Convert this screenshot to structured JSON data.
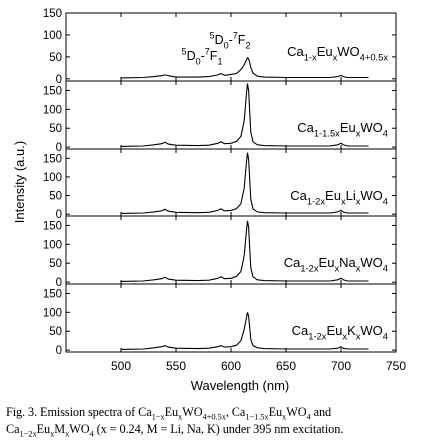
{
  "chart_data": {
    "type": "line",
    "xlabel": "Wavelength (nm)",
    "ylabel": "Intensity (a.u.)",
    "xlim": [
      500,
      725
    ],
    "xlim_axis": [
      450,
      750
    ],
    "x_ticks": [
      "500",
      "550",
      "600",
      "650",
      "700",
      "750"
    ],
    "grid": false,
    "peak_labels": {
      "d0f1": {
        "sup1": "5",
        "base1": "D",
        "sub1": "0",
        "dash": "-",
        "sup2": "7",
        "base2": "F",
        "sub2": "1"
      },
      "d0f2": {
        "sup1": "5",
        "base1": "D",
        "sub1": "0",
        "dash": "-",
        "sup2": "7",
        "base2": "F",
        "sub2": "2"
      }
    },
    "panels": [
      {
        "ylim": [
          -5,
          150
        ],
        "y_ticks": [
          "150",
          "100",
          "50",
          "0"
        ],
        "label": [
          {
            "t": "Ca",
            "s": ""
          },
          {
            "t": "1-x",
            "s": "sub"
          },
          {
            "t": "Eu",
            "s": ""
          },
          {
            "t": "x",
            "s": "sub"
          },
          {
            "t": "WO",
            "s": ""
          },
          {
            "t": "4+0.5x",
            "s": "sub"
          }
        ],
        "series": {
          "x": [
            500,
            520,
            530,
            537,
            540,
            543,
            550,
            570,
            580,
            588,
            591,
            594,
            600,
            605,
            609,
            612,
            614,
            615,
            616,
            617,
            618,
            620,
            624,
            630,
            650,
            690,
            697,
            700,
            702,
            706,
            725
          ],
          "y": [
            2,
            3,
            5,
            7,
            9,
            7,
            4,
            4,
            5,
            9,
            12,
            8,
            10,
            12,
            21,
            32,
            43,
            48,
            46,
            37,
            26,
            13,
            6,
            4,
            3,
            3,
            5,
            8,
            5,
            3,
            3
          ]
        }
      },
      {
        "ylim": [
          -5,
          175
        ],
        "y_ticks": [
          "150",
          "100",
          "50",
          "0"
        ],
        "label": [
          {
            "t": "Ca",
            "s": ""
          },
          {
            "t": "1-1.5x",
            "s": "sub"
          },
          {
            "t": "Eu",
            "s": ""
          },
          {
            "t": "x",
            "s": "sub"
          },
          {
            "t": "WO",
            "s": ""
          },
          {
            "t": "4",
            "s": "sub"
          }
        ],
        "series": {
          "x": [
            500,
            520,
            530,
            537,
            540,
            543,
            550,
            570,
            580,
            588,
            591,
            594,
            600,
            605,
            609,
            612,
            614,
            615,
            616,
            617,
            618,
            620,
            624,
            630,
            650,
            690,
            697,
            700,
            702,
            706,
            725
          ],
          "y": [
            2,
            3,
            6,
            9,
            13,
            8,
            5,
            4,
            5,
            10,
            14,
            9,
            10,
            15,
            28,
            70,
            140,
            168,
            150,
            95,
            40,
            14,
            6,
            4,
            3,
            3,
            6,
            10,
            6,
            3,
            3
          ]
        }
      },
      {
        "ylim": [
          -5,
          175
        ],
        "y_ticks": [
          "150",
          "100",
          "50",
          "0"
        ],
        "label": [
          {
            "t": "Ca",
            "s": ""
          },
          {
            "t": "1-2x",
            "s": "sub"
          },
          {
            "t": "Eu",
            "s": ""
          },
          {
            "t": "x",
            "s": "sub"
          },
          {
            "t": "Li",
            "s": ""
          },
          {
            "t": "x",
            "s": "sub"
          },
          {
            "t": "WO",
            "s": ""
          },
          {
            "t": "4",
            "s": "sub"
          }
        ],
        "series": {
          "x": [
            500,
            520,
            530,
            537,
            540,
            543,
            550,
            570,
            580,
            588,
            591,
            594,
            600,
            605,
            609,
            612,
            614,
            615,
            616,
            617,
            618,
            620,
            624,
            630,
            650,
            690,
            697,
            700,
            702,
            706,
            725
          ],
          "y": [
            2,
            3,
            6,
            9,
            13,
            8,
            5,
            4,
            5,
            10,
            14,
            9,
            10,
            15,
            28,
            70,
            138,
            165,
            148,
            95,
            40,
            14,
            6,
            4,
            3,
            3,
            6,
            10,
            6,
            3,
            3
          ]
        }
      },
      {
        "ylim": [
          -5,
          175
        ],
        "y_ticks": [
          "150",
          "100",
          "50",
          "0"
        ],
        "label": [
          {
            "t": "Ca",
            "s": ""
          },
          {
            "t": "1-2x",
            "s": "sub"
          },
          {
            "t": "Eu",
            "s": ""
          },
          {
            "t": "x",
            "s": "sub"
          },
          {
            "t": "Na",
            "s": ""
          },
          {
            "t": "x",
            "s": "sub"
          },
          {
            "t": "WO",
            "s": ""
          },
          {
            "t": "4",
            "s": "sub"
          }
        ],
        "series": {
          "x": [
            500,
            520,
            530,
            537,
            540,
            543,
            550,
            570,
            580,
            588,
            591,
            594,
            600,
            605,
            609,
            612,
            614,
            615,
            616,
            617,
            618,
            620,
            624,
            630,
            650,
            690,
            697,
            700,
            702,
            706,
            725
          ],
          "y": [
            2,
            3,
            6,
            9,
            13,
            8,
            5,
            4,
            5,
            10,
            14,
            9,
            10,
            15,
            28,
            70,
            135,
            162,
            145,
            92,
            38,
            14,
            6,
            4,
            3,
            3,
            6,
            10,
            6,
            3,
            3
          ]
        }
      },
      {
        "ylim": [
          -5,
          175
        ],
        "y_ticks": [
          "150",
          "100",
          "50",
          "0"
        ],
        "label": [
          {
            "t": "Ca",
            "s": ""
          },
          {
            "t": "1-2x",
            "s": "sub"
          },
          {
            "t": "Eu",
            "s": ""
          },
          {
            "t": "x",
            "s": "sub"
          },
          {
            "t": "K",
            "s": ""
          },
          {
            "t": "x",
            "s": "sub"
          },
          {
            "t": "WO",
            "s": ""
          },
          {
            "t": "4",
            "s": "sub"
          }
        ],
        "series": {
          "x": [
            500,
            520,
            530,
            537,
            540,
            543,
            550,
            570,
            580,
            588,
            591,
            594,
            600,
            605,
            609,
            612,
            614,
            615,
            616,
            617,
            618,
            620,
            624,
            630,
            650,
            690,
            697,
            700,
            702,
            706,
            725
          ],
          "y": [
            2,
            3,
            6,
            9,
            12,
            8,
            5,
            4,
            5,
            9,
            12,
            8,
            9,
            13,
            25,
            55,
            85,
            100,
            90,
            60,
            28,
            12,
            6,
            4,
            3,
            3,
            5,
            9,
            5,
            3,
            3
          ]
        }
      }
    ]
  },
  "caption": {
    "line1": [
      {
        "t": "Fig. 3. Emission spectra of Ca",
        "s": ""
      },
      {
        "t": "1−x",
        "s": "sub"
      },
      {
        "t": "Eu",
        "s": ""
      },
      {
        "t": "x",
        "s": "sub"
      },
      {
        "t": "WO",
        "s": ""
      },
      {
        "t": "4+0.5x",
        "s": "sub"
      },
      {
        "t": ",  Ca",
        "s": ""
      },
      {
        "t": "1−1.5x",
        "s": "sub"
      },
      {
        "t": "Eu",
        "s": ""
      },
      {
        "t": "x",
        "s": "sub"
      },
      {
        "t": "WO",
        "s": ""
      },
      {
        "t": "4",
        "s": "sub"
      },
      {
        "t": "  and",
        "s": ""
      }
    ],
    "line2": [
      {
        "t": "Ca",
        "s": ""
      },
      {
        "t": "1−2x",
        "s": "sub"
      },
      {
        "t": "Eu",
        "s": ""
      },
      {
        "t": "x",
        "s": "sub"
      },
      {
        "t": "M",
        "s": ""
      },
      {
        "t": "x",
        "s": "sub"
      },
      {
        "t": "WO",
        "s": ""
      },
      {
        "t": "4",
        "s": "sub"
      },
      {
        "t": " (x = 0.24, M = Li, Na, K) under 395 nm excitation.",
        "s": ""
      }
    ]
  }
}
